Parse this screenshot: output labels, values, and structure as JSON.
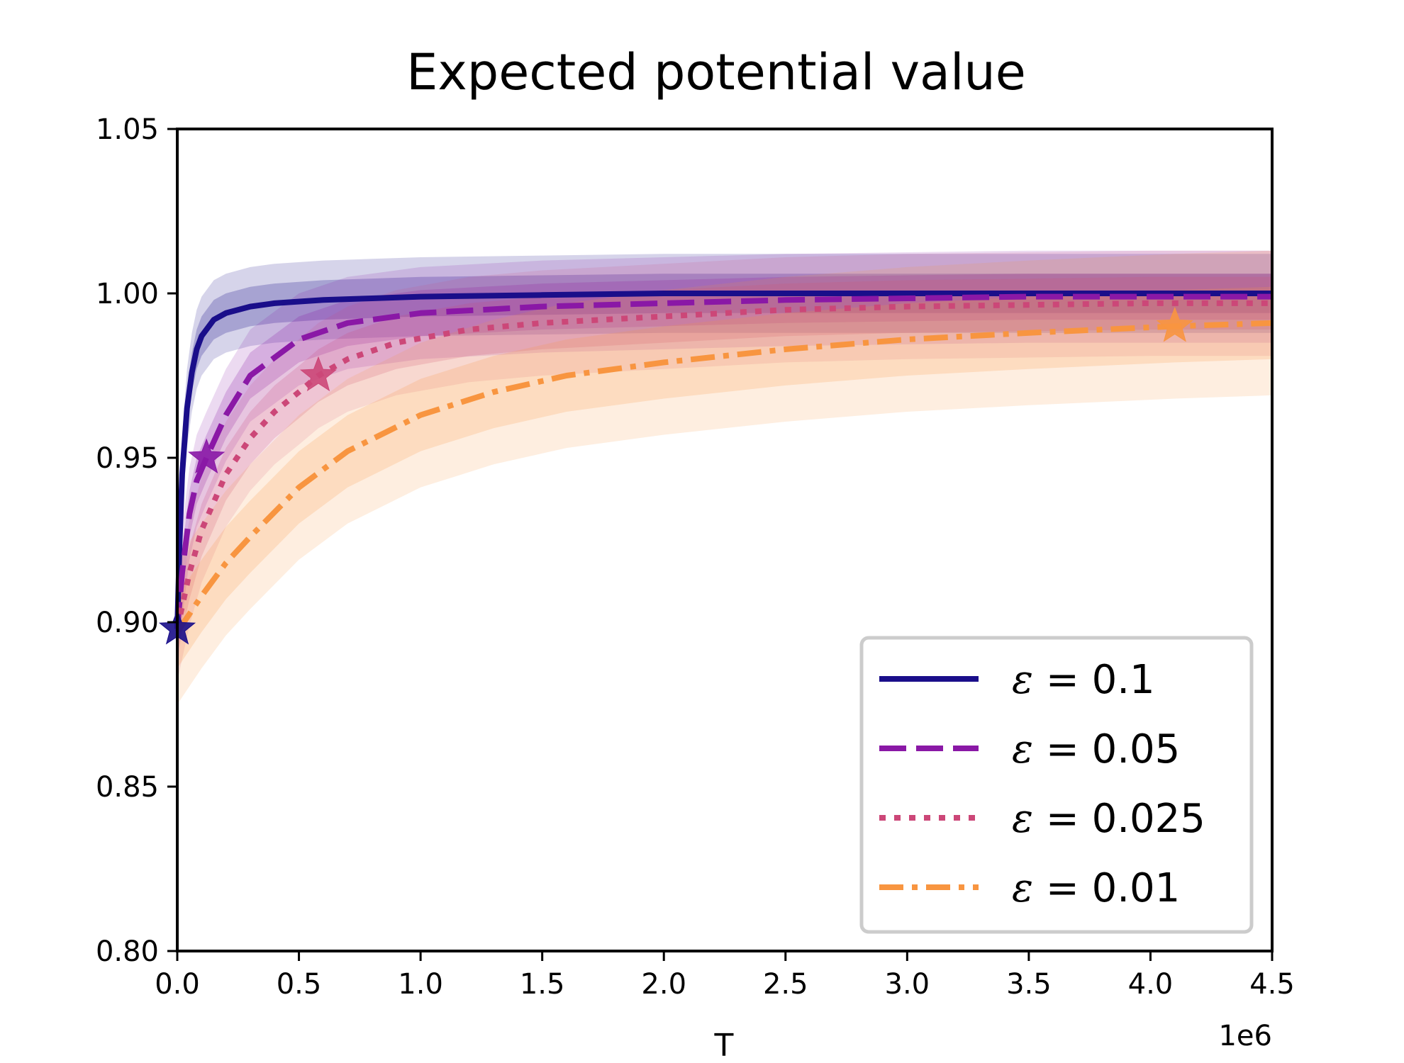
{
  "chart_data": {
    "type": "line",
    "title": "Expected potential value",
    "xlabel": "T",
    "ylabel": "",
    "x_offset_label": "1e6",
    "xlim": [
      0.0,
      4.5
    ],
    "ylim": [
      0.8,
      1.05
    ],
    "x_ticks": [
      0.0,
      0.5,
      1.0,
      1.5,
      2.0,
      2.5,
      3.0,
      3.5,
      4.0,
      4.5
    ],
    "x_tick_labels": [
      "0.0",
      "0.5",
      "1.0",
      "1.5",
      "2.0",
      "2.5",
      "3.0",
      "3.5",
      "4.0",
      "4.5"
    ],
    "y_ticks": [
      0.8,
      0.85,
      0.9,
      0.95,
      1.0,
      1.05
    ],
    "y_tick_labels": [
      "0.80",
      "0.85",
      "0.90",
      "0.95",
      "1.00",
      "1.05"
    ],
    "grid": false,
    "legend_position": "lower-right",
    "legend_symbol": "ε",
    "series": [
      {
        "name": "ε = 0.1",
        "epsilon_text": "0.1",
        "color": "#1a0e8a",
        "dash": "solid",
        "x": [
          0,
          0.01,
          0.02,
          0.04,
          0.06,
          0.08,
          0.1,
          0.15,
          0.2,
          0.3,
          0.4,
          0.6,
          0.8,
          1.0,
          1.5,
          2.0,
          3.0,
          4.0,
          4.5
        ],
        "y": [
          0.898,
          0.925,
          0.945,
          0.965,
          0.976,
          0.983,
          0.987,
          0.992,
          0.994,
          0.996,
          0.997,
          0.998,
          0.9985,
          0.999,
          0.9995,
          1.0,
          1.0,
          1.0,
          1.0
        ],
        "star": {
          "x": 0.0,
          "y": 0.898
        },
        "bands": [
          {
            "offset": 0.012,
            "opacity": 0.18
          },
          {
            "offset": 0.006,
            "opacity": 0.25
          }
        ]
      },
      {
        "name": "ε = 0.05",
        "epsilon_text": "0.05",
        "color": "#8a18a6",
        "dash": "dashed",
        "x": [
          0,
          0.02,
          0.05,
          0.08,
          0.12,
          0.2,
          0.3,
          0.5,
          0.7,
          1.0,
          1.5,
          2.0,
          2.5,
          3.0,
          3.5,
          4.0,
          4.5
        ],
        "y": [
          0.898,
          0.915,
          0.933,
          0.943,
          0.95,
          0.963,
          0.975,
          0.986,
          0.991,
          0.994,
          0.996,
          0.997,
          0.998,
          0.9985,
          0.999,
          0.999,
          0.999
        ],
        "star": {
          "x": 0.12,
          "y": 0.95
        },
        "bands": [
          {
            "offset": 0.014,
            "opacity": 0.16
          },
          {
            "offset": 0.007,
            "opacity": 0.22
          }
        ]
      },
      {
        "name": "ε = 0.025",
        "epsilon_text": "0.025",
        "color": "#cc4778",
        "dash": "dotted",
        "x": [
          0,
          0.05,
          0.1,
          0.2,
          0.3,
          0.4,
          0.5,
          0.58,
          0.7,
          0.9,
          1.2,
          1.5,
          2.0,
          2.5,
          3.0,
          3.5,
          4.0,
          4.5
        ],
        "y": [
          0.898,
          0.915,
          0.928,
          0.945,
          0.956,
          0.964,
          0.97,
          0.975,
          0.98,
          0.985,
          0.989,
          0.991,
          0.993,
          0.995,
          0.996,
          0.9965,
          0.997,
          0.997
        ],
        "star": {
          "x": 0.58,
          "y": 0.975
        },
        "bands": [
          {
            "offset": 0.016,
            "opacity": 0.14
          },
          {
            "offset": 0.008,
            "opacity": 0.2
          }
        ]
      },
      {
        "name": "ε = 0.01",
        "epsilon_text": "0.01",
        "color": "#f89540",
        "dash": "dashdot",
        "x": [
          0,
          0.1,
          0.2,
          0.3,
          0.5,
          0.7,
          1.0,
          1.3,
          1.6,
          2.0,
          2.5,
          3.0,
          3.5,
          4.1,
          4.5
        ],
        "y": [
          0.897,
          0.908,
          0.918,
          0.926,
          0.941,
          0.952,
          0.963,
          0.97,
          0.975,
          0.979,
          0.983,
          0.986,
          0.988,
          0.99,
          0.991
        ],
        "star": {
          "x": 4.1,
          "y": 0.99
        },
        "bands": [
          {
            "offset": 0.022,
            "opacity": 0.16
          },
          {
            "offset": 0.011,
            "opacity": 0.2
          }
        ]
      }
    ]
  }
}
